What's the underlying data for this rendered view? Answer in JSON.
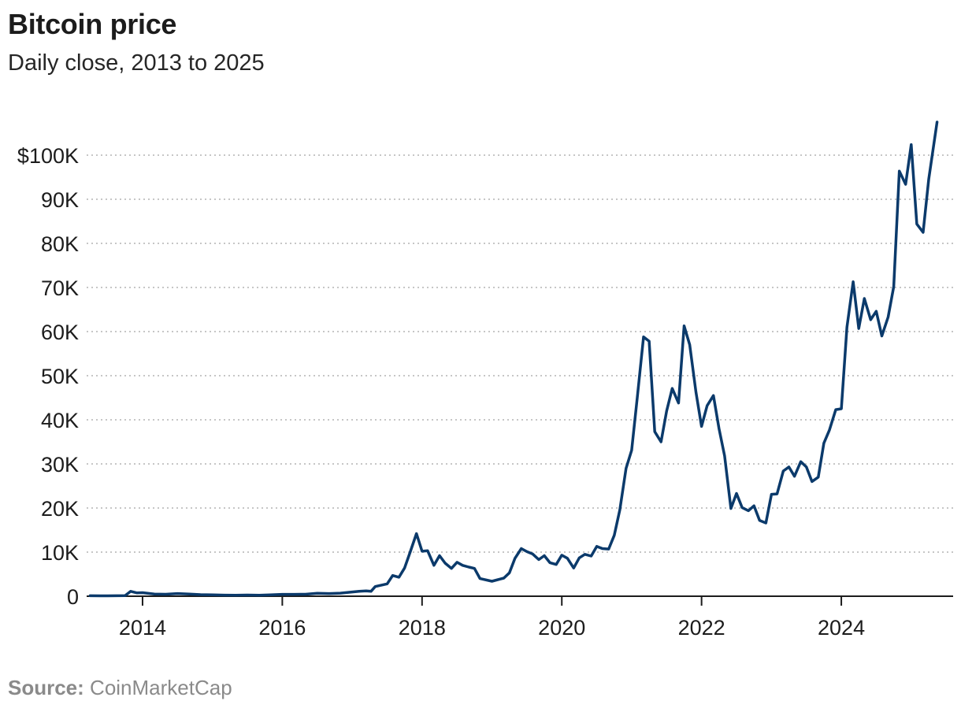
{
  "colors": {
    "line": "#0b3a6b",
    "grid": "#c6c6c6",
    "axis": "#1c1c1c",
    "source": "#8a8a8a"
  },
  "chart_data": {
    "type": "line",
    "title": "Bitcoin price",
    "subtitle": "Daily close, 2013 to 2025",
    "source_label": "Source:",
    "source_value": "CoinMarketCap",
    "xlabel": "",
    "ylabel": "",
    "xlim": [
      2013.2,
      2025.6
    ],
    "ylim": [
      0,
      108000
    ],
    "grid": true,
    "y_ticks": [
      {
        "value": 0,
        "label": "0"
      },
      {
        "value": 10000,
        "label": "10K"
      },
      {
        "value": 20000,
        "label": "20K"
      },
      {
        "value": 30000,
        "label": "30K"
      },
      {
        "value": 40000,
        "label": "40K"
      },
      {
        "value": 50000,
        "label": "50K"
      },
      {
        "value": 60000,
        "label": "60K"
      },
      {
        "value": 70000,
        "label": "70K"
      },
      {
        "value": 80000,
        "label": "80K"
      },
      {
        "value": 90000,
        "label": "90K"
      },
      {
        "value": 100000,
        "label": "$100K"
      }
    ],
    "x_ticks": [
      {
        "value": 2014,
        "label": "2014"
      },
      {
        "value": 2016,
        "label": "2016"
      },
      {
        "value": 2018,
        "label": "2018"
      },
      {
        "value": 2020,
        "label": "2020"
      },
      {
        "value": 2022,
        "label": "2022"
      },
      {
        "value": 2024,
        "label": "2024"
      }
    ],
    "series": [
      {
        "points": [
          [
            2013.25,
            100
          ],
          [
            2013.5,
            90
          ],
          [
            2013.75,
            120
          ],
          [
            2013.83,
            1100
          ],
          [
            2013.92,
            750
          ],
          [
            2014.0,
            800
          ],
          [
            2014.17,
            500
          ],
          [
            2014.33,
            450
          ],
          [
            2014.5,
            600
          ],
          [
            2014.67,
            500
          ],
          [
            2014.83,
            350
          ],
          [
            2015.0,
            300
          ],
          [
            2015.17,
            250
          ],
          [
            2015.33,
            230
          ],
          [
            2015.5,
            260
          ],
          [
            2015.67,
            230
          ],
          [
            2015.83,
            320
          ],
          [
            2016.0,
            430
          ],
          [
            2016.17,
            420
          ],
          [
            2016.33,
            450
          ],
          [
            2016.5,
            670
          ],
          [
            2016.67,
            610
          ],
          [
            2016.83,
            700
          ],
          [
            2017.0,
            970
          ],
          [
            2017.1,
            1100
          ],
          [
            2017.2,
            1200
          ],
          [
            2017.27,
            1100
          ],
          [
            2017.33,
            2200
          ],
          [
            2017.5,
            2800
          ],
          [
            2017.58,
            4700
          ],
          [
            2017.67,
            4300
          ],
          [
            2017.75,
            6400
          ],
          [
            2017.83,
            10000
          ],
          [
            2017.92,
            14200
          ],
          [
            2018.0,
            10200
          ],
          [
            2018.08,
            10300
          ],
          [
            2018.17,
            7000
          ],
          [
            2018.25,
            9200
          ],
          [
            2018.33,
            7500
          ],
          [
            2018.42,
            6300
          ],
          [
            2018.5,
            7700
          ],
          [
            2018.58,
            7000
          ],
          [
            2018.67,
            6600
          ],
          [
            2018.75,
            6300
          ],
          [
            2018.83,
            4000
          ],
          [
            2019.0,
            3400
          ],
          [
            2019.17,
            4100
          ],
          [
            2019.25,
            5300
          ],
          [
            2019.33,
            8600
          ],
          [
            2019.42,
            10800
          ],
          [
            2019.5,
            10100
          ],
          [
            2019.58,
            9600
          ],
          [
            2019.67,
            8300
          ],
          [
            2019.75,
            9200
          ],
          [
            2019.83,
            7600
          ],
          [
            2019.92,
            7200
          ],
          [
            2020.0,
            9300
          ],
          [
            2020.08,
            8600
          ],
          [
            2020.17,
            6400
          ],
          [
            2020.25,
            8700
          ],
          [
            2020.33,
            9500
          ],
          [
            2020.42,
            9100
          ],
          [
            2020.5,
            11300
          ],
          [
            2020.58,
            10800
          ],
          [
            2020.67,
            10700
          ],
          [
            2020.75,
            13800
          ],
          [
            2020.83,
            19600
          ],
          [
            2020.92,
            29000
          ],
          [
            2021.0,
            33100
          ],
          [
            2021.08,
            45000
          ],
          [
            2021.17,
            58800
          ],
          [
            2021.25,
            57800
          ],
          [
            2021.33,
            37300
          ],
          [
            2021.42,
            35000
          ],
          [
            2021.5,
            42000
          ],
          [
            2021.58,
            47100
          ],
          [
            2021.67,
            43800
          ],
          [
            2021.75,
            61300
          ],
          [
            2021.83,
            57000
          ],
          [
            2021.92,
            46300
          ],
          [
            2022.0,
            38500
          ],
          [
            2022.08,
            43200
          ],
          [
            2022.17,
            45500
          ],
          [
            2022.25,
            38000
          ],
          [
            2022.33,
            31800
          ],
          [
            2022.42,
            19900
          ],
          [
            2022.5,
            23300
          ],
          [
            2022.58,
            20100
          ],
          [
            2022.67,
            19400
          ],
          [
            2022.75,
            20500
          ],
          [
            2022.83,
            17200
          ],
          [
            2022.92,
            16600
          ],
          [
            2023.0,
            23100
          ],
          [
            2023.08,
            23200
          ],
          [
            2023.17,
            28400
          ],
          [
            2023.25,
            29300
          ],
          [
            2023.33,
            27200
          ],
          [
            2023.42,
            30500
          ],
          [
            2023.5,
            29300
          ],
          [
            2023.58,
            26000
          ],
          [
            2023.67,
            27000
          ],
          [
            2023.75,
            34700
          ],
          [
            2023.83,
            37700
          ],
          [
            2023.92,
            42300
          ],
          [
            2024.0,
            42500
          ],
          [
            2024.08,
            61000
          ],
          [
            2024.17,
            71300
          ],
          [
            2024.25,
            60700
          ],
          [
            2024.33,
            67500
          ],
          [
            2024.42,
            62700
          ],
          [
            2024.5,
            64600
          ],
          [
            2024.58,
            59000
          ],
          [
            2024.67,
            63300
          ],
          [
            2024.75,
            70200
          ],
          [
            2024.83,
            96400
          ],
          [
            2024.92,
            93400
          ],
          [
            2025.0,
            102400
          ],
          [
            2025.08,
            84400
          ],
          [
            2025.17,
            82500
          ],
          [
            2025.25,
            94500
          ],
          [
            2025.37,
            107500
          ]
        ]
      }
    ]
  }
}
